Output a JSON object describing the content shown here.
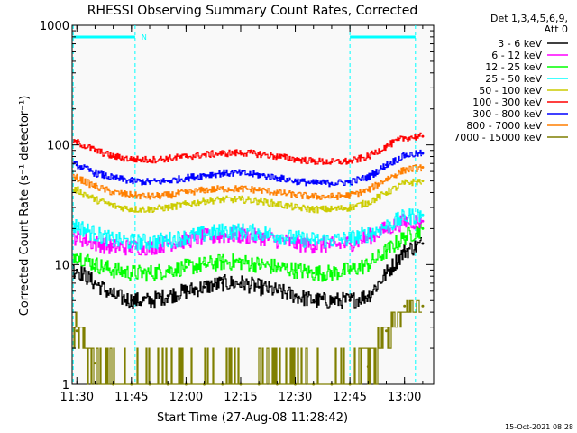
{
  "chart_data": {
    "type": "line",
    "title": "RHESSI Observing Summary Count Rates, Corrected",
    "xlabel": "Start Time (27-Aug-08 11:28:42)",
    "ylabel": "Corrected Count Rate (s⁻¹ detector⁻¹)",
    "yscale": "log",
    "ylim": [
      1,
      1000
    ],
    "xlim": [
      "11:28:42",
      "13:08:00"
    ],
    "x_ticks": [
      "11:30",
      "11:45",
      "12:00",
      "12:15",
      "12:30",
      "12:45",
      "13:00"
    ],
    "y_ticks": [
      "1",
      "10",
      "100",
      "1000"
    ],
    "legend_header": [
      "Det 1,3,4,5,6,9,",
      "Att 0"
    ],
    "legend_placement": "right",
    "background": "#f9f9f9",
    "markers": {
      "label": "N",
      "lines": [
        "11:29",
        "11:46",
        "12:45",
        "13:03"
      ],
      "bars": [
        [
          "11:29",
          "11:46"
        ],
        [
          "12:45",
          "13:03"
        ]
      ],
      "color": "#00ffff"
    },
    "time_points": [
      "11:30",
      "11:35",
      "11:40",
      "11:45",
      "11:50",
      "11:55",
      "12:00",
      "12:05",
      "12:10",
      "12:15",
      "12:20",
      "12:25",
      "12:30",
      "12:35",
      "12:40",
      "12:45",
      "12:50",
      "12:55",
      "13:00",
      "13:05"
    ],
    "series": [
      {
        "name": "3 - 6 keV",
        "color": "#000000",
        "values": [
          9,
          7,
          5.5,
          5,
          5,
          5.5,
          6,
          6.5,
          7,
          7,
          6.5,
          6,
          5.5,
          5,
          5,
          5,
          5.5,
          8.5,
          13,
          15
        ]
      },
      {
        "name": "6 - 12 keV",
        "color": "#ff00ff",
        "values": [
          17,
          15,
          14,
          14,
          14,
          15,
          16,
          17,
          17.5,
          17.5,
          17,
          16,
          15,
          14.5,
          14.5,
          15,
          17,
          20,
          23,
          23
        ]
      },
      {
        "name": "12 - 25 keV",
        "color": "#00ff00",
        "values": [
          12,
          10,
          9,
          8.5,
          8.5,
          9,
          9.5,
          10,
          10.5,
          10.5,
          10,
          9.5,
          9,
          8.5,
          8.5,
          9,
          10,
          13,
          17,
          20
        ]
      },
      {
        "name": "25 - 50 keV",
        "color": "#00ffff",
        "values": [
          21,
          18,
          16,
          15.5,
          15.5,
          16,
          17,
          18,
          19,
          19,
          18.5,
          17.5,
          16.5,
          16,
          16,
          16.5,
          18,
          21,
          25,
          26
        ]
      },
      {
        "name": "50 - 100 keV",
        "color": "#cccc00",
        "values": [
          42,
          35,
          31,
          29,
          29,
          30,
          32,
          34,
          35,
          35,
          34,
          32,
          30,
          29,
          29,
          30,
          33,
          40,
          48,
          50
        ]
      },
      {
        "name": "100 - 300 keV",
        "color": "#ff0000",
        "values": [
          105,
          90,
          80,
          76,
          75,
          77,
          80,
          83,
          85,
          86,
          84,
          80,
          76,
          73,
          72,
          73,
          80,
          98,
          115,
          118
        ]
      },
      {
        "name": "300 - 800 keV",
        "color": "#0000ff",
        "values": [
          68,
          58,
          53,
          50,
          49,
          50,
          53,
          56,
          58,
          58,
          56,
          53,
          50,
          48,
          48,
          49,
          54,
          68,
          82,
          85
        ]
      },
      {
        "name": "800 - 7000 keV",
        "color": "#ff7f00",
        "values": [
          53,
          45,
          40,
          38,
          37,
          38,
          40,
          42,
          43,
          43,
          42,
          40,
          38,
          37,
          37,
          38,
          42,
          52,
          62,
          65
        ]
      },
      {
        "name": "7000 - 15000 keV",
        "color": "#7f7f00",
        "values": [
          2.8,
          1.5,
          1.0,
          1.0,
          1.0,
          1.0,
          1.0,
          1.0,
          1.0,
          1.0,
          1.0,
          1.0,
          1.0,
          1.0,
          1.0,
          1.0,
          1.4,
          2.8,
          4.5,
          4.5
        ]
      }
    ]
  },
  "footer": {
    "timestamp": "15-Oct-2021 08:28"
  }
}
